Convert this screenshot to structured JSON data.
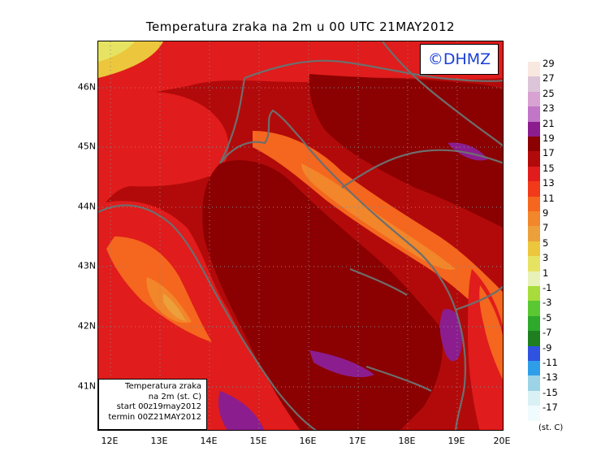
{
  "title": "Temperatura zraka na 2m u 00 UTC 21MAY2012",
  "logo_text": "©DHMZ",
  "logo_color": "#1a3fd6",
  "info_box": {
    "line1": "Temperatura zraka",
    "line2": "na 2m (st. C)",
    "line3": "start 00z19may2012",
    "line4": "termin 00Z21MAY2012"
  },
  "lat_ticks": [
    "46N",
    "45N",
    "44N",
    "43N",
    "42N",
    "41N"
  ],
  "lon_ticks": [
    "12E",
    "13E",
    "14E",
    "15E",
    "16E",
    "17E",
    "18E",
    "19E",
    "20E"
  ],
  "colorbar": {
    "labels": [
      "29",
      "27",
      "25",
      "23",
      "21",
      "19",
      "17",
      "15",
      "13",
      "11",
      "9",
      "7",
      "5",
      "3",
      "1",
      "-1",
      "-3",
      "-5",
      "-7",
      "-9",
      "-11",
      "-13",
      "-15",
      "-17"
    ],
    "colors": [
      "#f9e8df",
      "#dcc5d8",
      "#d8a2d2",
      "#c176c7",
      "#8b1d8f",
      "#8b0000",
      "#b20a0a",
      "#e01c1c",
      "#f03a1a",
      "#f5661e",
      "#f2862a",
      "#eba03b",
      "#ecc63c",
      "#e6e362",
      "#e8f1b8",
      "#a7dc3c",
      "#5ac832",
      "#2ea92c",
      "#1f7f20",
      "#2f52e0",
      "#2f9ee8",
      "#9cd3e6",
      "#d9f1f5",
      "#f0fbfd"
    ],
    "unit": "(st. C)"
  }
}
